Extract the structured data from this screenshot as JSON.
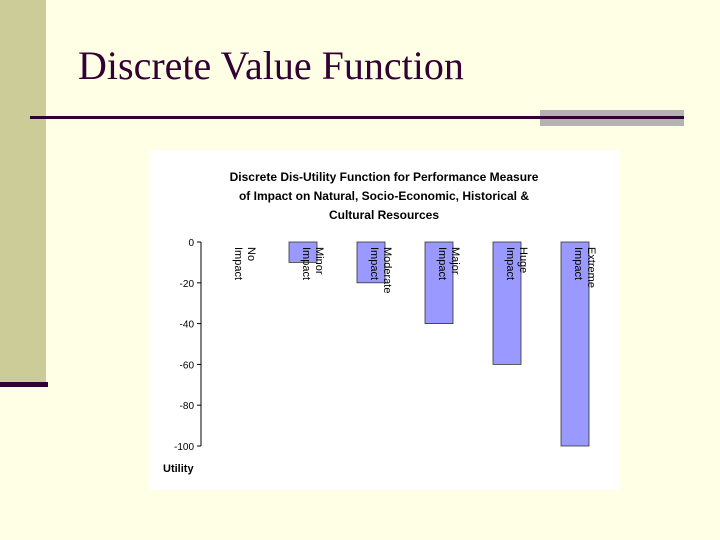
{
  "slide": {
    "title": "Discrete Value Function"
  },
  "colors": {
    "background": "#ffffe5",
    "accent_bar": "#cccc99",
    "title_text": "#330033",
    "bar_fill": "#9999ff",
    "bar_stroke": "#333333"
  },
  "chart_data": {
    "type": "bar",
    "title_lines": [
      "Discrete Dis-Utility Function for Performance Measure",
      "of Impact on Natural, Socio-Economic, Historical &",
      "Cultural Resources"
    ],
    "categories": [
      "No Impact",
      "Minor Impact",
      "Moderate Impact",
      "Major Impact",
      "Huge Impact",
      "Extreme Impact"
    ],
    "category_lines": [
      [
        "No",
        "Impact"
      ],
      [
        "Minor",
        "Impact"
      ],
      [
        "Moderate",
        "Impact"
      ],
      [
        "Major",
        "Impact"
      ],
      [
        "Huge",
        "Impact"
      ],
      [
        "Extreme",
        "Impact"
      ]
    ],
    "values": [
      0,
      -10,
      -20,
      -40,
      -60,
      -100
    ],
    "ylabel": "Utility",
    "ylim": [
      -100,
      0
    ],
    "yticks": [
      0,
      -20,
      -40,
      -60,
      -80,
      -100
    ],
    "ytick_labels": [
      "0",
      "-20",
      "-40",
      "-60",
      "-80",
      "-100"
    ],
    "grid": false,
    "legend": "none",
    "category_label_position": "top, rotated"
  }
}
